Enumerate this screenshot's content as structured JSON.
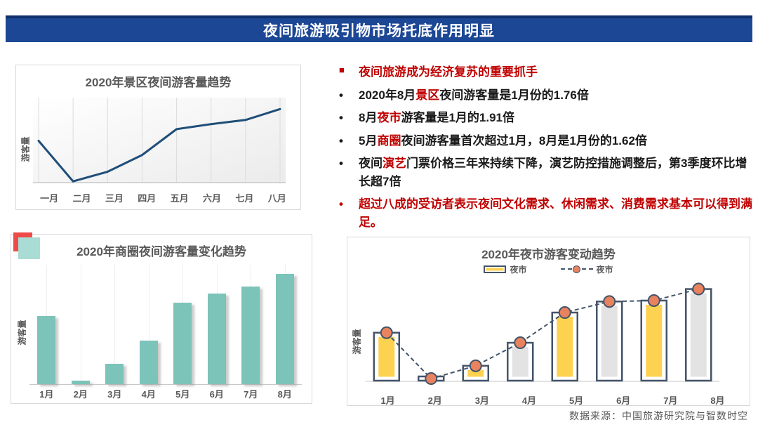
{
  "banner": {
    "title": "夜间旅游吸引物市场托底作用明显",
    "bg_color": "#1c4795",
    "text_color": "#ffffff"
  },
  "accent_colors": {
    "highlight_red": "#c00000",
    "decor_red": "#ee4a49",
    "decor_teal": "#a9dcd4"
  },
  "bullets": [
    {
      "marker": "■",
      "marker_color": "#c00000",
      "segments": [
        {
          "text": "夜间旅游成为经济复苏的重要抓手",
          "red": true
        }
      ]
    },
    {
      "marker": "•",
      "marker_color": "#1a1a1a",
      "segments": [
        {
          "text": "2020年8月"
        },
        {
          "text": "景区",
          "red": true
        },
        {
          "text": "夜间游客量是1月份的1.76倍"
        }
      ]
    },
    {
      "marker": "•",
      "marker_color": "#1a1a1a",
      "segments": [
        {
          "text": "8月"
        },
        {
          "text": "夜市",
          "red": true
        },
        {
          "text": "游客量是1月的1.91倍"
        }
      ]
    },
    {
      "marker": "•",
      "marker_color": "#1a1a1a",
      "segments": [
        {
          "text": "5月"
        },
        {
          "text": "商圈",
          "red": true
        },
        {
          "text": "夜间游客量首次超过1月，8月是1月份的1.62倍"
        }
      ]
    },
    {
      "marker": "•",
      "marker_color": "#1a1a1a",
      "segments": [
        {
          "text": "夜间"
        },
        {
          "text": "演艺",
          "red": true
        },
        {
          "text": "门票价格三年来持续下降，演艺防控措施调整后，第3季度环比增长超7倍"
        }
      ]
    },
    {
      "marker": "•",
      "marker_color": "#c00000",
      "segments": [
        {
          "text": "超过八成的受访者表示夜间文化需求、休闲需求、消费需求基本可以得到满足。",
          "red": true
        }
      ]
    }
  ],
  "chart_data": [
    {
      "type": "line",
      "title": "2020年景区夜间游客量趋势",
      "ylabel": "游客量",
      "xlabel": "",
      "categories": [
        "一月",
        "二月",
        "三月",
        "四月",
        "五月",
        "六月",
        "七月",
        "八月"
      ],
      "values": [
        1.0,
        0.03,
        0.26,
        0.66,
        1.28,
        1.4,
        1.5,
        1.76
      ],
      "value_basis": "relative volume, January = 1 (August = 1.76x January)",
      "line_color": "#1f4e79",
      "ylim": [
        0,
        1.9
      ],
      "grid": "vertical-only",
      "legend_position": "none"
    },
    {
      "type": "bar",
      "title": "2020年商圈夜间游客量变化趋势",
      "ylabel": "游客量",
      "xlabel": "",
      "categories": [
        "1月",
        "2月",
        "3月",
        "4月",
        "5月",
        "6月",
        "7月",
        "8月"
      ],
      "values": [
        1.0,
        0.05,
        0.3,
        0.64,
        1.19,
        1.33,
        1.43,
        1.62
      ],
      "value_basis": "relative volume, January = 1 (August = 1.62x January)",
      "bar_color": "#7cc3b9",
      "ylim": [
        0,
        1.75
      ],
      "grid": "faint-vertical",
      "legend_position": "none"
    },
    {
      "type": "bar",
      "title": "2020年夜市游客变动趋势",
      "ylabel": "游客量",
      "xlabel": "",
      "categories": [
        "1月",
        "2月",
        "3月",
        "4月",
        "5月",
        "6月",
        "7月",
        "8月"
      ],
      "series": [
        {
          "name": "夜市",
          "type": "bar",
          "values": [
            1.0,
            0.04,
            0.31,
            0.79,
            1.42,
            1.65,
            1.67,
            1.91
          ]
        },
        {
          "name": "夜市",
          "type": "line",
          "values": [
            1.0,
            0.04,
            0.31,
            0.79,
            1.42,
            1.65,
            1.67,
            1.91
          ]
        }
      ],
      "value_basis": "relative volume, January = 1 (August = 1.91x January)",
      "bar_fill_colors": [
        "#fdd250",
        "#e3e3e3",
        "#fdd250",
        "#e3e3e3",
        "#fdd250",
        "#e3e3e3",
        "#fdd250",
        "#e3e3e3"
      ],
      "bar_outline_color": "#44546a",
      "marker_color": "#e8825f",
      "line_style": "dashed",
      "ylim": [
        0,
        2.05
      ],
      "legend_position": "top"
    }
  ],
  "source": {
    "text": "数据来源：中国旅游研究院与智数时空"
  }
}
